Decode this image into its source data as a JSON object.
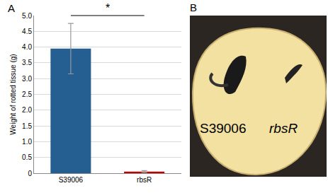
{
  "panel_labels": [
    "A",
    "B"
  ],
  "chart_data": {
    "type": "bar",
    "categories": [
      "S39006",
      "rbsR"
    ],
    "values": [
      3.95,
      0.05
    ],
    "errors": [
      0.8,
      0.03
    ],
    "colors": [
      "#255e91",
      "#c00000"
    ],
    "y_label": "Weight of rotted tissue (g)",
    "ylim": [
      0,
      5
    ],
    "yticks": [
      0,
      0.5,
      {
        "value": 1,
        "label": "1.0"
      },
      1.5,
      {
        "value": 2,
        "label": "2.0"
      },
      2.5,
      {
        "value": 3,
        "label": "3.0"
      },
      3.5,
      {
        "value": 4,
        "label": "4.0"
      },
      4.5,
      {
        "value": 5,
        "label": "5.0"
      }
    ],
    "grid": true,
    "annotations": [
      {
        "text": "*"
      }
    ]
  },
  "photo": {
    "labels": [
      "S39006",
      "rbsR"
    ]
  }
}
